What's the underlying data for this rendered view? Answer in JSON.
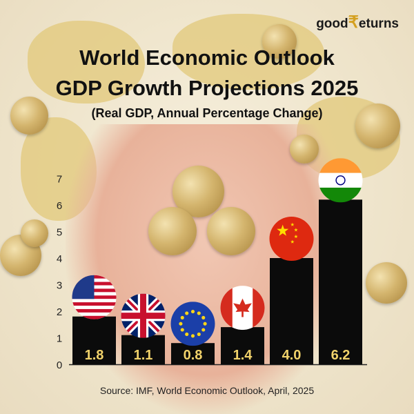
{
  "brand": {
    "logo_good": "good",
    "logo_rest": "eturns",
    "logo_symbol": "₹"
  },
  "header": {
    "title_line1": "World Economic Outlook",
    "title_line2": "GDP Growth Projections 2025",
    "subtitle": "(Real GDP, Annual Percentage Change)"
  },
  "footer": {
    "source": "Source: IMF, World Economic Outlook, April, 2025"
  },
  "colors": {
    "bar": "#0b0b0b",
    "value_label": "#f2d36b",
    "axis": "#222222"
  },
  "chart_data": {
    "type": "bar",
    "categories": [
      "United States",
      "United Kingdom",
      "European Union",
      "Canada",
      "China",
      "India"
    ],
    "flag_icons": [
      "us-flag-icon",
      "uk-flag-icon",
      "eu-flag-icon",
      "canada-flag-icon",
      "china-flag-icon",
      "india-flag-icon"
    ],
    "values": [
      1.8,
      1.1,
      0.8,
      1.4,
      4.0,
      6.2
    ],
    "value_labels": [
      "1.8",
      "1.1",
      "0.8",
      "1.4",
      "4.0",
      "6.2"
    ],
    "yticks": [
      "0",
      "1",
      "2",
      "3",
      "4",
      "5",
      "6",
      "7"
    ],
    "ylim": [
      0,
      7
    ],
    "grid": false
  }
}
